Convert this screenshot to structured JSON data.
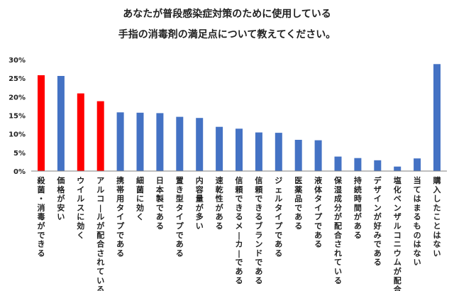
{
  "chart_data": {
    "type": "bar",
    "title_lines": [
      "あなたが普段感染症対策のために使用している",
      "手指の消毒剤の満足点について教えてください。"
    ],
    "xlabel": "",
    "ylabel": "",
    "ylim": [
      0,
      30
    ],
    "yticks": [
      "0%",
      "5%",
      "10%",
      "15%",
      "20%",
      "25%",
      "30%"
    ],
    "grid": false,
    "legend": "none",
    "categories": [
      "殺菌・消毒ができる",
      "価格が安い",
      "ウイルスに効く",
      "アルコールが配合されている",
      "携帯用タイプである",
      "細菌に効く",
      "日本製である",
      "置き型タイプである",
      "内容量が多い",
      "速乾性がある",
      "信頼できるメーカーである",
      "信頼できるブランドである",
      "ジェルタイプである",
      "医薬品である",
      "液体タイプである",
      "保湿成分が配合されている",
      "持続時間がある",
      "デザインが好みである",
      "塩化ベンザルコニウムが配合",
      "当てはまるものはない",
      "購入したことはない"
    ],
    "values": [
      25.8,
      25.6,
      20.9,
      18.8,
      15.8,
      15.7,
      15.6,
      14.6,
      14.3,
      11.9,
      11.4,
      10.4,
      10.3,
      8.4,
      8.3,
      3.9,
      3.5,
      2.9,
      1.2,
      3.4,
      28.8
    ],
    "highlight": [
      true,
      false,
      true,
      true,
      false,
      false,
      false,
      false,
      false,
      false,
      false,
      false,
      false,
      false,
      false,
      false,
      false,
      false,
      false,
      false,
      false
    ],
    "colors": {
      "default": "#4472C4",
      "highlight": "#FF0000",
      "axis": "#7f7f7f"
    }
  }
}
